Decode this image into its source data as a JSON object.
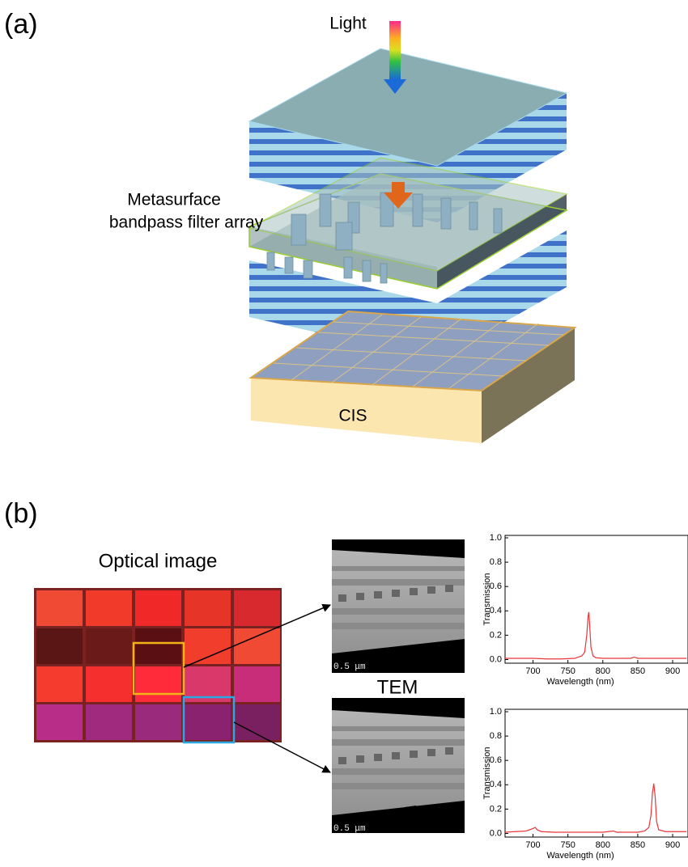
{
  "figure": {
    "panel_a": {
      "label": "(a)",
      "light": "Light",
      "filter_line1": "Metasurface",
      "filter_line2": "bandpass filter array",
      "cis": "CIS"
    },
    "panel_b": {
      "label": "(b)",
      "optical_title": "Optical image",
      "tem_label": "TEM",
      "scale_top": "0.5 μm",
      "scale_bottom": "0.5 μm"
    }
  },
  "chart_data": [
    {
      "type": "line",
      "color": "#e8363a",
      "x_label": "Wavelength (nm)",
      "y_label": "Transmission",
      "x": [
        660,
        680,
        700,
        720,
        740,
        760,
        765,
        770,
        774,
        777,
        779,
        780,
        781,
        783,
        786,
        790,
        800,
        820,
        840,
        845,
        850,
        860,
        880,
        900,
        920
      ],
      "values": [
        0.01,
        0.01,
        0.01,
        0.005,
        0.005,
        0.01,
        0.02,
        0.03,
        0.06,
        0.2,
        0.36,
        0.39,
        0.3,
        0.1,
        0.03,
        0.015,
        0.01,
        0.01,
        0.01,
        0.02,
        0.01,
        0.01,
        0.01,
        0.01,
        0.01
      ],
      "xlim": [
        660,
        922
      ],
      "ylim": [
        -0.03,
        1.02
      ],
      "xticks": [
        700,
        750,
        800,
        850,
        900
      ],
      "yticks": [
        {
          "value": 0,
          "label": "0.0"
        },
        {
          "value": 0.2,
          "label": "0.2"
        },
        {
          "value": 0.4,
          "label": "0.4"
        },
        {
          "value": 0.6,
          "label": "0.6"
        },
        {
          "value": 0.8,
          "label": "0.8"
        },
        {
          "value": 1,
          "label": "1.0"
        }
      ]
    },
    {
      "type": "line",
      "color": "#e8363a",
      "x_label": "Wavelength (nm)",
      "y_label": "Transmission",
      "x": [
        660,
        690,
        700,
        703,
        706,
        712,
        730,
        760,
        800,
        815,
        820,
        850,
        860,
        866,
        869,
        871,
        873,
        875,
        877,
        880,
        890,
        920
      ],
      "values": [
        0.01,
        0.02,
        0.04,
        0.05,
        0.03,
        0.015,
        0.01,
        0.01,
        0.01,
        0.02,
        0.01,
        0.01,
        0.02,
        0.05,
        0.15,
        0.33,
        0.41,
        0.3,
        0.1,
        0.03,
        0.015,
        0.015
      ],
      "xlim": [
        660,
        922
      ],
      "ylim": [
        -0.03,
        1.02
      ],
      "xticks": [
        700,
        750,
        800,
        850,
        900
      ],
      "yticks": [
        {
          "value": 0,
          "label": "0.0"
        },
        {
          "value": 0.2,
          "label": "0.2"
        },
        {
          "value": 0.4,
          "label": "0.4"
        },
        {
          "value": 0.6,
          "label": "0.6"
        },
        {
          "value": 0.8,
          "label": "0.8"
        },
        {
          "value": 1,
          "label": "1.0"
        }
      ]
    }
  ]
}
